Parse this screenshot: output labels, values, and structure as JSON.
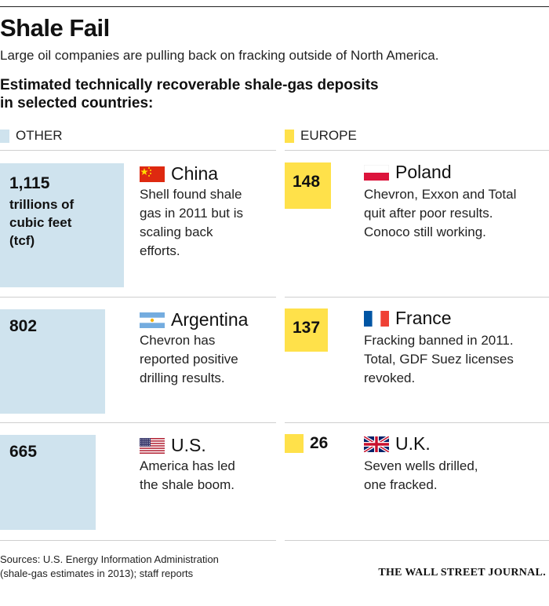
{
  "header": {
    "title": "Shale Fail",
    "subtitle": "Large oil companies are pulling back on fracking outside of North America.",
    "heading_line1": "Estimated technically recoverable shale-gas deposits",
    "heading_line2": "in selected countries:"
  },
  "legend": {
    "other": {
      "label": "OTHER",
      "color": "#cfe3ee"
    },
    "europe": {
      "label": "EUROPE",
      "color": "#ffe14a"
    }
  },
  "unit_lines": [
    "trillions of",
    "cubic feet",
    "(tcf)"
  ],
  "chart_data": {
    "type": "bar",
    "unit": "trillions of cubic feet (tcf)",
    "series": [
      {
        "name": "OTHER",
        "color": "#cfe3ee",
        "items": [
          {
            "country": "China",
            "value": 1115,
            "value_label": "1,115",
            "flag": "china-flag-icon",
            "desc": [
              "Shell found shale",
              "gas in 2011 but is",
              "scaling back",
              "efforts."
            ]
          },
          {
            "country": "Argentina",
            "value": 802,
            "value_label": "802",
            "flag": "argentina-flag-icon",
            "desc": [
              "Chevron has",
              "reported positive",
              "drilling results."
            ]
          },
          {
            "country": "U.S.",
            "value": 665,
            "value_label": "665",
            "flag": "us-flag-icon",
            "desc": [
              "America has led",
              "the shale boom."
            ]
          }
        ]
      },
      {
        "name": "EUROPE",
        "color": "#ffe14a",
        "items": [
          {
            "country": "Poland",
            "value": 148,
            "value_label": "148",
            "flag": "poland-flag-icon",
            "desc": [
              "Chevron, Exxon and Total",
              "quit after poor results.",
              "Conoco still working."
            ]
          },
          {
            "country": "France",
            "value": 137,
            "value_label": "137",
            "flag": "france-flag-icon",
            "desc": [
              "Fracking banned in 2011.",
              "Total, GDF Suez licenses",
              "revoked."
            ]
          },
          {
            "country": "U.K.",
            "value": 26,
            "value_label": "26",
            "flag": "uk-flag-icon",
            "desc": [
              "Seven wells drilled,",
              "one fracked."
            ]
          }
        ]
      }
    ]
  },
  "footer": {
    "source_line1": "Sources: U.S. Energy Information Administration",
    "source_line2": "(shale-gas estimates in 2013); staff reports",
    "publisher": "THE WALL STREET JOURNAL."
  }
}
